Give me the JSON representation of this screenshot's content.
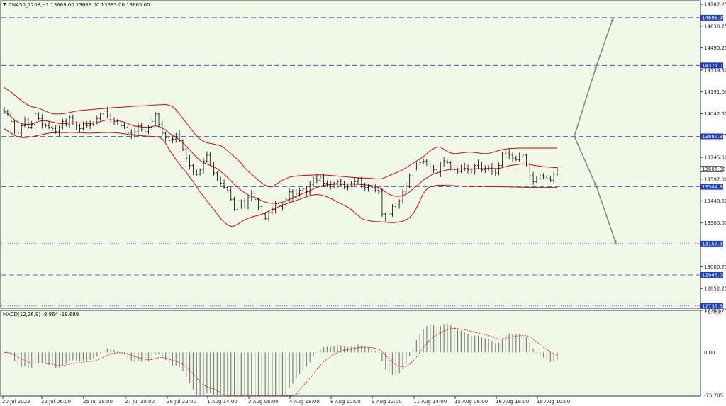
{
  "header": {
    "main": "CNA50_2208,H1  13669.00 13689.00 13633.00 13665.00",
    "macd": "MACD(12,26,9) -8.864 -18.689"
  },
  "colors": {
    "background": "#f0f8e8",
    "grid_line": "#1e40c8",
    "candles": "#000000",
    "bands": "#e00000",
    "macd_hist": "#808080",
    "macd_signal": "#e00000",
    "projection": "#888888",
    "label_bg": "#1e40c8"
  },
  "chart_data": [
    {
      "type": "candlestick",
      "ylim": [
        12703.75,
        14787.25
      ],
      "yticks": [
        "14787.25",
        "14638.75",
        "14490.25",
        "14339.50",
        "14191.00",
        "14042.50",
        "13893.75",
        "13745.50",
        "13597.00",
        "13448.50",
        "13300.00",
        "13000.75",
        "12852.25",
        "12703.75"
      ],
      "xticks": [
        "20 Jul 2022",
        "22 Jul 06:00",
        "25 Jul 18:00",
        "27 Jul 10:00",
        "28 Jul 22:00",
        "1 Aug 14:00",
        "3 Aug 06:00",
        "4 Aug 18:00",
        "8 Aug 10:00",
        "9 Aug 22:00",
        "11 Aug 14:00",
        "15 Aug 06:00",
        "16 Aug 18:00",
        "18 Aug 10:00"
      ],
      "current_price": "13665.00",
      "levels": [
        {
          "label": "14695.99",
          "value": 14695.99,
          "style": "dashed"
        },
        {
          "label": "14371.01",
          "value": 14371.01,
          "style": "dashed"
        },
        {
          "label": "13887.88",
          "value": 13887.88,
          "style": "dashed"
        },
        {
          "label": "13544.84",
          "value": 13544.84,
          "style": "dashed"
        },
        {
          "label": "13157.84",
          "value": 13157.84,
          "style": "dotted"
        },
        {
          "label": "12945.04",
          "value": 12945.04,
          "style": "dashed"
        },
        {
          "label": "12733.68",
          "value": 12733.68,
          "style": "dotted"
        }
      ],
      "close_series": [
        14060,
        14040,
        13990,
        13930,
        13910,
        13960,
        14000,
        13950,
        13970,
        14040,
        14010,
        13970,
        13960,
        13950,
        13940,
        13920,
        13950,
        13990,
        13970,
        14020,
        13980,
        13960,
        13940,
        13970,
        13960,
        13970,
        13980,
        14010,
        14040,
        14060,
        14030,
        14000,
        13990,
        13980,
        13960,
        13950,
        13910,
        13900,
        13920,
        13960,
        13930,
        13920,
        13950,
        13990,
        14040,
        13970,
        13910,
        13880,
        13860,
        13870,
        13900,
        13860,
        13800,
        13740,
        13690,
        13650,
        13630,
        13660,
        13720,
        13760,
        13700,
        13640,
        13600,
        13570,
        13540,
        13520,
        13460,
        13390,
        13420,
        13450,
        13420,
        13470,
        13500,
        13460,
        13410,
        13360,
        13330,
        13370,
        13390,
        13430,
        13410,
        13420,
        13460,
        13510,
        13480,
        13500,
        13520,
        13530,
        13510,
        13560,
        13600,
        13590,
        13610,
        13570,
        13560,
        13550,
        13570,
        13580,
        13560,
        13540,
        13550,
        13570,
        13580,
        13600,
        13560,
        13540,
        13550,
        13540,
        13520,
        13510,
        13360,
        13320,
        13360,
        13410,
        13420,
        13450,
        13510,
        13550,
        13620,
        13680,
        13700,
        13710,
        13720,
        13700,
        13680,
        13660,
        13640,
        13700,
        13720,
        13710,
        13680,
        13660,
        13650,
        13680,
        13670,
        13660,
        13650,
        13690,
        13700,
        13660,
        13670,
        13680,
        13650,
        13640,
        13690,
        13770,
        13780,
        13760,
        13740,
        13730,
        13750,
        13760,
        13700,
        13620,
        13580,
        13600,
        13620,
        13610,
        13600,
        13590,
        13630,
        13665
      ],
      "bollinger": {
        "middle": [
          14060,
          14040,
          14020,
          14000,
          13985,
          13975,
          13970,
          13970,
          13972,
          13980,
          13990,
          13995,
          13995,
          13990,
          13985,
          13980,
          13975,
          13975,
          13975,
          13978,
          13980,
          13980,
          13980,
          13978,
          13975,
          13975,
          13978,
          13982,
          13988,
          13995,
          14000,
          14000,
          13998,
          13995,
          13990,
          13985,
          13975,
          13965,
          13958,
          13955,
          13952,
          13950,
          13950,
          13955,
          13960,
          13955,
          13945,
          13930,
          13910,
          13895,
          13882,
          13865,
          13845,
          13820,
          13795,
          13770,
          13745,
          13725,
          13710,
          13700,
          13690,
          13680,
          13668,
          13650,
          13630,
          13610,
          13585,
          13560,
          13540,
          13520,
          13505,
          13490,
          13480,
          13472,
          13462,
          13450,
          13440,
          13435,
          13432,
          13432,
          13435,
          13440,
          13448,
          13458,
          13468,
          13478,
          13490,
          13500,
          13508,
          13518,
          13530,
          13540,
          13548,
          13555,
          13558,
          13560,
          13562,
          13563,
          13564,
          13564,
          13563,
          13563,
          13562,
          13562,
          13560,
          13558,
          13556,
          13553,
          13548,
          13540,
          13525,
          13508,
          13495,
          13485,
          13480,
          13480,
          13485,
          13495,
          13510,
          13530,
          13550,
          13570,
          13590,
          13605,
          13620,
          13632,
          13640,
          13648,
          13655,
          13660,
          13663,
          13665,
          13665,
          13666,
          13666,
          13666,
          13666,
          13667,
          13668,
          13668,
          13669,
          13670,
          13670,
          13669,
          13670,
          13675,
          13682,
          13688,
          13692,
          13695,
          13698,
          13700,
          13700,
          13697,
          13692,
          13688,
          13685,
          13682,
          13680,
          13678,
          13676,
          13675
        ],
        "upper": [
          14220,
          14205,
          14190,
          14170,
          14150,
          14130,
          14115,
          14100,
          14090,
          14085,
          14080,
          14070,
          14060,
          14050,
          14042,
          14040,
          14040,
          14042,
          14046,
          14050,
          14055,
          14060,
          14064,
          14066,
          14068,
          14070,
          14072,
          14074,
          14076,
          14078,
          14080,
          14082,
          14084,
          14085,
          14086,
          14088,
          14090,
          14092,
          14093,
          14094,
          14095,
          14096,
          14098,
          14100,
          14102,
          14103,
          14104,
          14105,
          14100,
          14090,
          14070,
          14040,
          14010,
          13980,
          13950,
          13920,
          13890,
          13870,
          13855,
          13845,
          13840,
          13835,
          13830,
          13825,
          13810,
          13790,
          13770,
          13750,
          13730,
          13705,
          13675,
          13650,
          13630,
          13610,
          13590,
          13570,
          13555,
          13545,
          13545,
          13560,
          13575,
          13590,
          13600,
          13610,
          13615,
          13618,
          13620,
          13622,
          13623,
          13624,
          13625,
          13626,
          13626,
          13625,
          13624,
          13622,
          13620,
          13618,
          13616,
          13614,
          13612,
          13610,
          13608,
          13606,
          13605,
          13604,
          13603,
          13602,
          13600,
          13598,
          13600,
          13610,
          13620,
          13630,
          13640,
          13650,
          13660,
          13675,
          13690,
          13705,
          13720,
          13735,
          13750,
          13770,
          13790,
          13805,
          13815,
          13815,
          13800,
          13785,
          13775,
          13770,
          13772,
          13775,
          13778,
          13780,
          13780,
          13778,
          13775,
          13772,
          13770,
          13772,
          13778,
          13785,
          13792,
          13798,
          13802,
          13805,
          13806,
          13807,
          13808,
          13808,
          13808,
          13808,
          13808,
          13808,
          13808,
          13808,
          13808,
          13808,
          13808,
          13808
        ],
        "lower": [
          13940,
          13925,
          13910,
          13895,
          13885,
          13880,
          13880,
          13882,
          13885,
          13890,
          13895,
          13900,
          13905,
          13910,
          13912,
          13913,
          13914,
          13914,
          13914,
          13915,
          13915,
          13914,
          13913,
          13912,
          13910,
          13910,
          13911,
          13912,
          13913,
          13914,
          13915,
          13914,
          13913,
          13911,
          13909,
          13906,
          13902,
          13898,
          13895,
          13893,
          13892,
          13890,
          13889,
          13888,
          13886,
          13882,
          13870,
          13840,
          13800,
          13765,
          13730,
          13700,
          13670,
          13645,
          13610,
          13580,
          13545,
          13510,
          13480,
          13450,
          13420,
          13390,
          13360,
          13330,
          13305,
          13285,
          13275,
          13278,
          13290,
          13305,
          13320,
          13330,
          13338,
          13345,
          13350,
          13358,
          13368,
          13380,
          13390,
          13400,
          13410,
          13420,
          13428,
          13436,
          13444,
          13452,
          13460,
          13468,
          13476,
          13484,
          13490,
          13492,
          13490,
          13484,
          13476,
          13466,
          13454,
          13442,
          13430,
          13418,
          13405,
          13390,
          13370,
          13350,
          13330,
          13320,
          13315,
          13310,
          13308,
          13307,
          13305,
          13303,
          13302,
          13301,
          13302,
          13305,
          13310,
          13320,
          13335,
          13360,
          13400,
          13450,
          13500,
          13530,
          13545,
          13550,
          13555,
          13555,
          13555,
          13554,
          13553,
          13552,
          13551,
          13550,
          13550,
          13549,
          13548,
          13548,
          13548,
          13548,
          13548,
          13547,
          13546,
          13546,
          13545,
          13545,
          13544,
          13544,
          13543,
          13543,
          13542,
          13542,
          13541,
          13541,
          13540,
          13540,
          13540,
          13540,
          13540,
          13540,
          13540,
          13540
        ]
      },
      "projections": [
        {
          "from": [
            1.04,
            13887.88
          ],
          "to": [
            1.12,
            14371.01
          ],
          "to2": [
            1.18,
            14695.99
          ]
        },
        {
          "from": [
            1.04,
            13887.88
          ],
          "to": [
            1.12,
            13544.84
          ],
          "to2": [
            1.19,
            13157.84
          ]
        }
      ]
    },
    {
      "type": "macd",
      "title": "MACD(12,26,9) -8.864 -18.689",
      "ylim": [
        -75.705,
        71.452
      ],
      "yticks": [
        "71.452",
        "0.00",
        "-75.705"
      ]
    }
  ]
}
